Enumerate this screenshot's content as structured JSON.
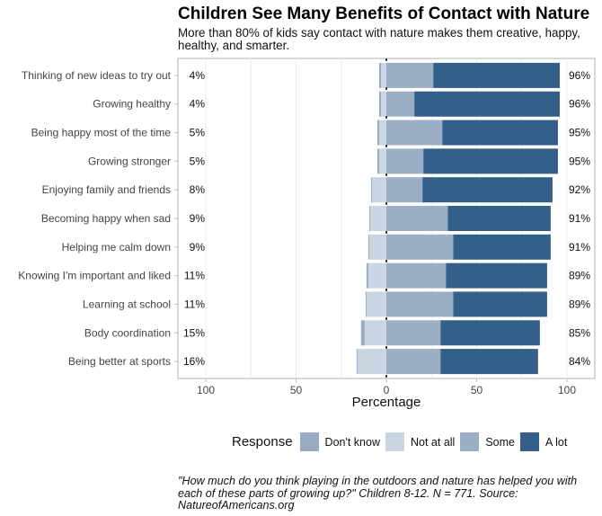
{
  "chart_data": {
    "type": "bar",
    "orientation": "horizontal-diverging",
    "title": "Children See Many Benefits of Contact with Nature",
    "subtitle": "More than 80% of kids say contact with nature makes them creative, happy, healthy, and smarter.",
    "xlabel": "Percentage",
    "ylabel": "",
    "xlim": [
      -100,
      100
    ],
    "x_ticks": [
      -100,
      -50,
      0,
      50,
      100
    ],
    "x_tick_labels": [
      "100",
      "50",
      "0",
      "50",
      "100"
    ],
    "grid": true,
    "legend": {
      "title": "Response",
      "placement": "bottom",
      "entries": [
        {
          "name": "Don't know",
          "color": "#98abc2"
        },
        {
          "name": "Not at all",
          "color": "#c9d6e2"
        },
        {
          "name": "Some",
          "color": "#9aaec5"
        },
        {
          "name": "A lot",
          "color": "#335f8a"
        }
      ]
    },
    "categories": [
      "Thinking of new ideas to try out",
      "Growing healthy",
      "Being happy most of the time",
      "Growing stronger",
      "Enjoying family and friends",
      "Becoming happy when sad",
      "Helping me calm down",
      "Knowing I'm important and liked",
      "Learning at school",
      "Body coordination",
      "Being better at sports"
    ],
    "series": [
      {
        "name": "Don't know",
        "side": "negative",
        "values": [
          1,
          1,
          1,
          1,
          0.5,
          0.5,
          0.5,
          1,
          0.5,
          2,
          0.5
        ]
      },
      {
        "name": "Not at all",
        "side": "negative",
        "values": [
          3,
          3,
          4,
          4,
          8,
          9,
          9.5,
          10,
          11,
          12,
          16
        ]
      },
      {
        "name": "Some",
        "side": "positive",
        "values": [
          26,
          15.5,
          31,
          20.5,
          20,
          34,
          37,
          33,
          37,
          30,
          30
        ]
      },
      {
        "name": "A lot",
        "side": "positive",
        "values": [
          70,
          80.5,
          64,
          74.5,
          72,
          57,
          54,
          56,
          52,
          55,
          54
        ]
      }
    ],
    "left_labels": [
      "4%",
      "4%",
      "5%",
      "5%",
      "8%",
      "9%",
      "9%",
      "11%",
      "11%",
      "15%",
      "16%"
    ],
    "right_labels": [
      "96%",
      "96%",
      "95%",
      "95%",
      "92%",
      "91%",
      "91%",
      "89%",
      "89%",
      "85%",
      "84%"
    ],
    "caption": "\"How much do you think playing in the outdoors and nature has helped you with each of these parts of growing up?\" Children 8-12. N = 771. Source: NatureofAmericans.org"
  }
}
